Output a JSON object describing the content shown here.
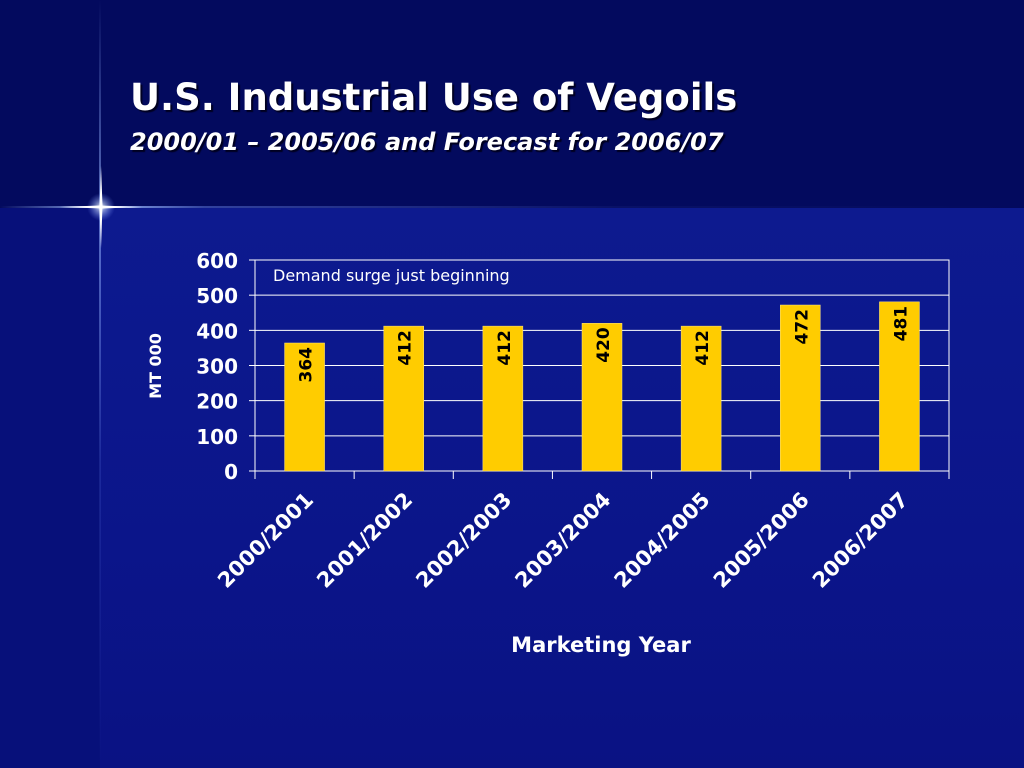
{
  "slide": {
    "title": "U.S. Industrial Use of Vegoils",
    "subtitle": "2000/01 – 2005/06 and Forecast for 2006/07"
  },
  "colors": {
    "background": "#0c1584",
    "header_band": "#030a5e",
    "bar_fill": "#ffcc00",
    "text": "#ffffff"
  },
  "chart_data": {
    "type": "bar",
    "title": "",
    "xlabel": "Marketing Year",
    "ylabel": "MT 000",
    "categories": [
      "2000/2001",
      "2001/2002",
      "2002/2003",
      "2003/2004",
      "2004/2005",
      "2005/2006",
      "2006/2007"
    ],
    "values": [
      364,
      412,
      412,
      420,
      412,
      472,
      481
    ],
    "ylim": [
      0,
      600
    ],
    "yticks": [
      0,
      100,
      200,
      300,
      400,
      500,
      600
    ],
    "grid": true,
    "data_labels": true,
    "data_label_orientation": "vertical",
    "legend": "none",
    "annotation": "Demand surge just beginning"
  }
}
